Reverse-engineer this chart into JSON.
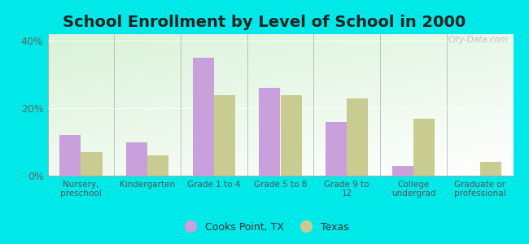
{
  "title": "School Enrollment by Level of School in 2000",
  "categories": [
    "Nursery,\npreschool",
    "Kindergarten",
    "Grade 1 to 4",
    "Grade 5 to 8",
    "Grade 9 to\n12",
    "College\nundergrad",
    "Graduate or\nprofessional"
  ],
  "cooks_point": [
    12,
    10,
    35,
    26,
    16,
    3,
    0
  ],
  "texas": [
    7,
    6,
    24,
    24,
    23,
    17,
    4
  ],
  "cooks_color": "#c9a0dc",
  "texas_color": "#c8cc90",
  "background_outer": "#00e8e8",
  "background_plot_top": "#f0f8f0",
  "background_plot_bottom": "#c8e8c8",
  "yticks": [
    0,
    20,
    40
  ],
  "ylim": [
    0,
    42
  ],
  "legend_labels": [
    "Cooks Point, TX",
    "Texas"
  ],
  "title_fontsize": 14,
  "watermark": "City-Data.com"
}
